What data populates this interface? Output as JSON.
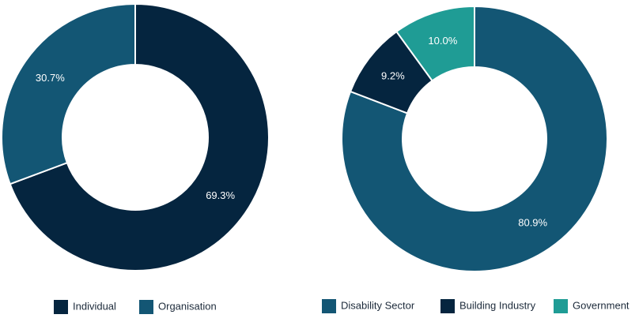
{
  "chart_data": [
    {
      "type": "pie",
      "variant": "donut",
      "title": "",
      "slices": [
        {
          "name": "Individual",
          "value": 69.3,
          "label": "69.3%",
          "color": "#05253f"
        },
        {
          "name": "Organisation",
          "value": 30.7,
          "label": "30.7%",
          "color": "#135674"
        }
      ],
      "legend": {
        "position": "bottom",
        "entries": [
          "Individual",
          "Organisation"
        ]
      }
    },
    {
      "type": "pie",
      "variant": "donut",
      "title": "",
      "slices": [
        {
          "name": "Disability Sector",
          "value": 80.9,
          "label": "80.9%",
          "color": "#135674"
        },
        {
          "name": "Building Industry",
          "value": 9.2,
          "label": "9.2%",
          "color": "#05253f"
        },
        {
          "name": "Government",
          "value": 10.0,
          "label": "10.0%",
          "color": "#1f9c95"
        }
      ],
      "legend": {
        "position": "bottom",
        "entries": [
          "Disability Sector",
          "Building Industry",
          "Government"
        ]
      }
    }
  ]
}
